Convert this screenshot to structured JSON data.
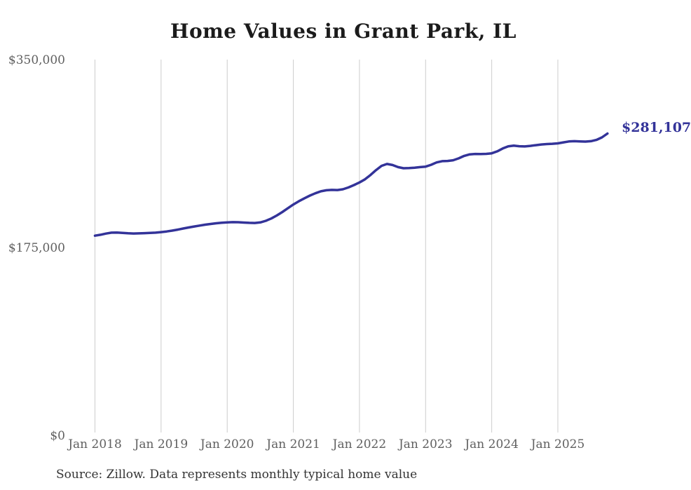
{
  "title": "Home Values in Grant Park, IL",
  "source_note": "Source: Zillow. Data represents monthly typical home value",
  "colors": {
    "line": "#333399",
    "end_label": "#333399",
    "gridline": "#cccccc",
    "axis_text": "#606060",
    "title_text": "#1b1b1b",
    "source_text": "#343434",
    "background": "#ffffff"
  },
  "chart_data": {
    "type": "line",
    "title": "Home Values in Grant Park, IL",
    "series_name": "Typical home value",
    "last_point_label": "$281,107",
    "last_point_value": 281107,
    "ylim": [
      0,
      350000
    ],
    "grid": "vertical-only",
    "legend": "none",
    "yticks": [
      {
        "value": 0,
        "label": "$0"
      },
      {
        "value": 175000,
        "label": "$175,000"
      },
      {
        "value": 350000,
        "label": "$350,000"
      }
    ],
    "xticks": [
      {
        "month_index": 0,
        "label": "Jan 2018"
      },
      {
        "month_index": 12,
        "label": "Jan 2019"
      },
      {
        "month_index": 24,
        "label": "Jan 2020"
      },
      {
        "month_index": 36,
        "label": "Jan 2021"
      },
      {
        "month_index": 48,
        "label": "Jan 2022"
      },
      {
        "month_index": 60,
        "label": "Jan 2023"
      },
      {
        "month_index": 72,
        "label": "Jan 2024"
      },
      {
        "month_index": 84,
        "label": "Jan 2025"
      }
    ],
    "x": [
      "2018-01",
      "2018-02",
      "2018-03",
      "2018-04",
      "2018-05",
      "2018-06",
      "2018-07",
      "2018-08",
      "2018-09",
      "2018-10",
      "2018-11",
      "2018-12",
      "2019-01",
      "2019-02",
      "2019-03",
      "2019-04",
      "2019-05",
      "2019-06",
      "2019-07",
      "2019-08",
      "2019-09",
      "2019-10",
      "2019-11",
      "2019-12",
      "2020-01",
      "2020-02",
      "2020-03",
      "2020-04",
      "2020-05",
      "2020-06",
      "2020-07",
      "2020-08",
      "2020-09",
      "2020-10",
      "2020-11",
      "2020-12",
      "2021-01",
      "2021-02",
      "2021-03",
      "2021-04",
      "2021-05",
      "2021-06",
      "2021-07",
      "2021-08",
      "2021-09",
      "2021-10",
      "2021-11",
      "2021-12",
      "2022-01",
      "2022-02",
      "2022-03",
      "2022-04",
      "2022-05",
      "2022-06",
      "2022-07",
      "2022-08",
      "2022-09",
      "2022-10",
      "2022-11",
      "2022-12",
      "2023-01",
      "2023-02",
      "2023-03",
      "2023-04",
      "2023-05",
      "2023-06",
      "2023-07",
      "2023-08",
      "2023-09",
      "2023-10",
      "2023-11",
      "2023-12",
      "2024-01",
      "2024-02",
      "2024-03",
      "2024-04",
      "2024-05",
      "2024-06",
      "2024-07",
      "2024-08",
      "2024-09",
      "2024-10",
      "2024-11",
      "2024-12",
      "2025-01",
      "2025-02",
      "2025-03",
      "2025-04",
      "2025-05",
      "2025-06",
      "2025-07",
      "2025-08",
      "2025-09",
      "2025-10"
    ],
    "values": [
      186000,
      186800,
      187900,
      188800,
      188900,
      188500,
      188200,
      188000,
      188100,
      188300,
      188500,
      188800,
      189300,
      189900,
      190700,
      191600,
      192600,
      193600,
      194500,
      195400,
      196200,
      196900,
      197500,
      198000,
      198400,
      198600,
      198500,
      198200,
      197900,
      197800,
      198300,
      199800,
      202000,
      204800,
      208000,
      211500,
      215000,
      218000,
      220800,
      223300,
      225500,
      227300,
      228300,
      228600,
      228500,
      229200,
      230900,
      233100,
      235500,
      238500,
      242500,
      247000,
      251000,
      252800,
      251800,
      249800,
      248800,
      248900,
      249300,
      249800,
      250300,
      252000,
      254200,
      255400,
      255600,
      256200,
      258000,
      260300,
      261700,
      262100,
      262000,
      262200,
      262700,
      264500,
      267200,
      269200,
      269800,
      269300,
      269100,
      269600,
      270300,
      270900,
      271300,
      271600,
      272000,
      272900,
      273700,
      274000,
      273800,
      273600,
      274000,
      275200,
      277500,
      281107
    ]
  }
}
